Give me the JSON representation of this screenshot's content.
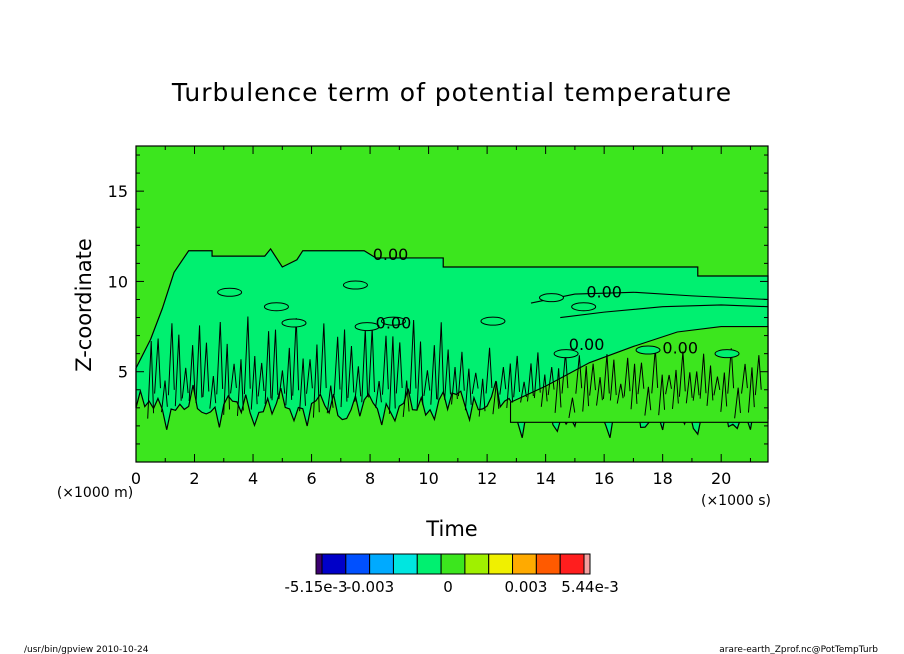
{
  "chart_data": {
    "type": "heatmap",
    "title": "Turbulence term of potential temperature",
    "xlabel": "Time",
    "ylabel": "Z-coordinate",
    "x_unit": "(×1000 s)",
    "y_unit": "(×1000 m)",
    "xlim": [
      0,
      21.6
    ],
    "ylim": [
      0,
      17.5
    ],
    "x_ticks": [
      "0",
      "2",
      "4",
      "6",
      "8",
      "10",
      "12",
      "14",
      "16",
      "18",
      "20"
    ],
    "y_ticks": [
      "5",
      "10",
      "15"
    ],
    "contour_labels": [
      "0.00",
      "0.00",
      "0.00",
      "0.00",
      "0.00"
    ],
    "colorbar": {
      "labels": [
        "-5.15e-3",
        "-0.003",
        "0",
        "0.003",
        "5.44e-3"
      ],
      "colors": [
        "#3c0070",
        "#0000c8",
        "#0050ff",
        "#00aaff",
        "#00e6e0",
        "#00f070",
        "#3ce61e",
        "#a0f000",
        "#f0f000",
        "#ffaa00",
        "#ff5a00",
        "#ff1e1e",
        "#f4a0a0"
      ]
    },
    "background_color": "#3ce61e",
    "active_region_color": "#00f070",
    "grid": false
  },
  "footer": {
    "left": "/usr/bin/gpview   2010-10-24",
    "right": "arare-earth_Zprof.nc@PotTempTurb"
  }
}
